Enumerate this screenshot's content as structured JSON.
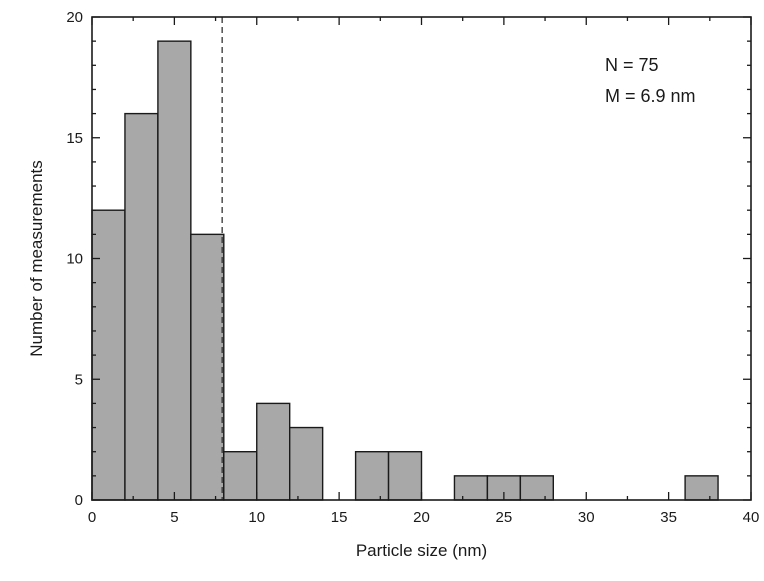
{
  "chart_data": {
    "type": "bar",
    "xlabel": "Particle size (nm)",
    "ylabel": "Number of measurements",
    "xlim": [
      0,
      40
    ],
    "ylim": [
      0,
      20
    ],
    "x_ticks": [
      0,
      5,
      10,
      15,
      20,
      25,
      30,
      35,
      40
    ],
    "y_ticks": [
      0,
      5,
      10,
      15,
      20
    ],
    "bin_width": 2,
    "bins": [
      {
        "start": 0,
        "end": 2,
        "count": 12
      },
      {
        "start": 2,
        "end": 4,
        "count": 16
      },
      {
        "start": 4,
        "end": 6,
        "count": 19
      },
      {
        "start": 6,
        "end": 8,
        "count": 11
      },
      {
        "start": 8,
        "end": 10,
        "count": 2
      },
      {
        "start": 10,
        "end": 12,
        "count": 4
      },
      {
        "start": 12,
        "end": 14,
        "count": 3
      },
      {
        "start": 14,
        "end": 16,
        "count": 0
      },
      {
        "start": 16,
        "end": 18,
        "count": 2
      },
      {
        "start": 18,
        "end": 20,
        "count": 2
      },
      {
        "start": 20,
        "end": 22,
        "count": 0
      },
      {
        "start": 22,
        "end": 24,
        "count": 1
      },
      {
        "start": 24,
        "end": 26,
        "count": 1
      },
      {
        "start": 26,
        "end": 28,
        "count": 1
      },
      {
        "start": 28,
        "end": 30,
        "count": 0
      },
      {
        "start": 30,
        "end": 32,
        "count": 0
      },
      {
        "start": 32,
        "end": 34,
        "count": 0
      },
      {
        "start": 34,
        "end": 36,
        "count": 0
      },
      {
        "start": 36,
        "end": 38,
        "count": 1
      }
    ],
    "reference_line": {
      "x": 7.9,
      "style": "dashed"
    },
    "annotations": [
      "N = 75",
      "M = 6.9 nm"
    ],
    "bar_color": "#a8a8a8",
    "bar_edge_color": "#1a1a1a",
    "grid": false,
    "legend": "none"
  }
}
